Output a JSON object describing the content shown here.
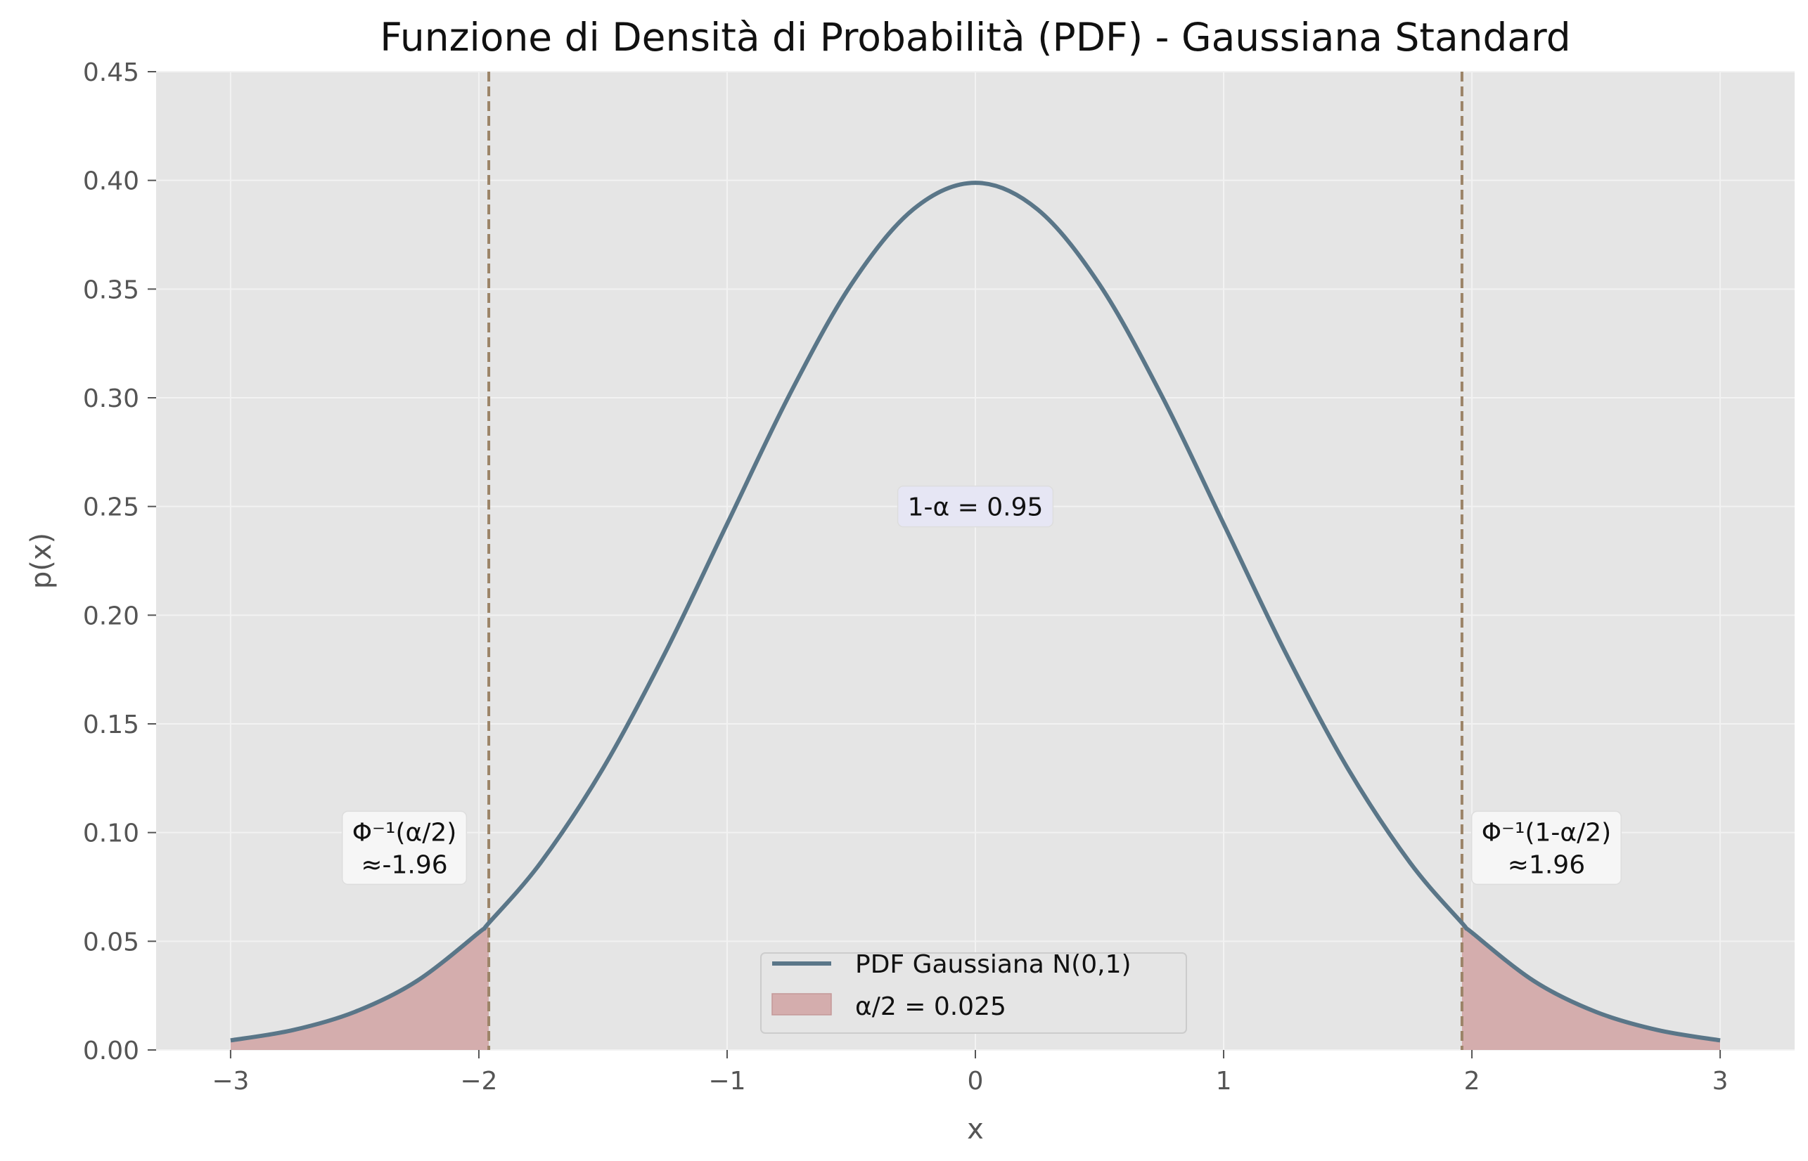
{
  "chart_data": {
    "type": "line",
    "title": "Funzione di Densità di Probabilità (PDF) - Gaussiana Standard",
    "xlabel": "x",
    "ylabel": "p(x)",
    "xlim": [
      -3.3,
      3.3
    ],
    "ylim": [
      0,
      0.45
    ],
    "xticks": [
      -3,
      -2,
      -1,
      0,
      1,
      2,
      3
    ],
    "xtick_labels": [
      "−3",
      "−2",
      "−1",
      "0",
      "1",
      "2",
      "3"
    ],
    "yticks": [
      0,
      0.05,
      0.1,
      0.15,
      0.2,
      0.25,
      0.3,
      0.35,
      0.4,
      0.45
    ],
    "ytick_labels": [
      "0.00",
      "0.05",
      "0.10",
      "0.15",
      "0.20",
      "0.25",
      "0.30",
      "0.35",
      "0.40",
      "0.45"
    ],
    "grid": true,
    "series": [
      {
        "name": "PDF Gaussiana N(0,1)",
        "color": "#5a7688",
        "x": [
          -3.0,
          -2.75,
          -2.5,
          -2.25,
          -2.0,
          -1.96,
          -1.75,
          -1.5,
          -1.25,
          -1.0,
          -0.75,
          -0.5,
          -0.25,
          0.0,
          0.25,
          0.5,
          0.75,
          1.0,
          1.25,
          1.5,
          1.75,
          1.96,
          2.0,
          2.25,
          2.5,
          2.75,
          3.0
        ],
        "y": [
          0.0044,
          0.0091,
          0.0175,
          0.0317,
          0.054,
          0.0584,
          0.0863,
          0.1295,
          0.1826,
          0.242,
          0.3011,
          0.3521,
          0.3867,
          0.3989,
          0.3867,
          0.3521,
          0.3011,
          0.242,
          0.1826,
          0.1295,
          0.0863,
          0.0584,
          0.054,
          0.0317,
          0.0175,
          0.0091,
          0.0044
        ]
      }
    ],
    "shaded_tails": {
      "label": "α/2 = 0.025",
      "color": "#d4adad",
      "left": [
        -3.0,
        -1.96
      ],
      "right": [
        1.96,
        3.0
      ]
    },
    "vlines": [
      {
        "x": -1.96,
        "color": "#9c8468",
        "style": "dashed"
      },
      {
        "x": 1.96,
        "color": "#9c8468",
        "style": "dashed"
      }
    ],
    "annotations": [
      {
        "id": "center",
        "line1": "1-α = 0.95",
        "line2": "",
        "x": 0.0,
        "y": 0.25
      },
      {
        "id": "left",
        "line1": "Φ⁻¹(α/2)",
        "line2": "≈-1.96",
        "x": -2.3,
        "y": 0.093
      },
      {
        "id": "right",
        "line1": "Φ⁻¹(1-α/2)",
        "line2": "≈1.96",
        "x": 2.3,
        "y": 0.093
      }
    ],
    "legend": {
      "placement": "lower center",
      "entries": [
        "PDF Gaussiana N(0,1)",
        "α/2 = 0.025"
      ]
    }
  }
}
